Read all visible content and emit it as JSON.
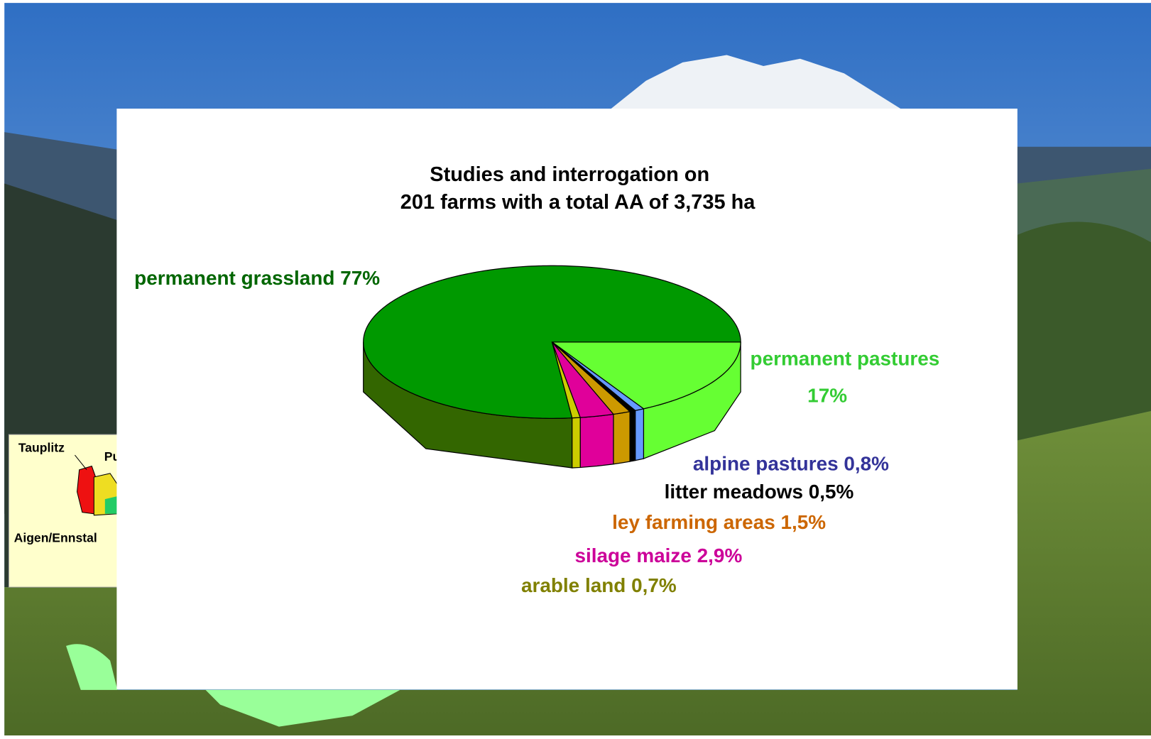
{
  "chart_data": {
    "type": "pie3d",
    "title": "Studies and interrogation on",
    "subtitle": "201 farms with a total AA of 3,735 ha",
    "categories": [
      "permanent pastures",
      "alpine pastures",
      "litter meadows",
      "ley farming areas",
      "silage maize",
      "arable land",
      "permanent grassland"
    ],
    "values": [
      17,
      0.8,
      0.5,
      1.5,
      2.9,
      0.7,
      77
    ],
    "value_labels": [
      "17%",
      "0,8%",
      "0,5%",
      "1,5%",
      "2,9%",
      "0,7%",
      "77%"
    ],
    "colors": [
      "#66ff33",
      "#6699ff",
      "#000000",
      "#cc9900",
      "#e0009a",
      "#cccc00",
      "#009900"
    ],
    "label_colors": [
      "#33cc33",
      "#333399",
      "#000000",
      "#cc6600",
      "#cc0099",
      "#808000",
      "#006600"
    ]
  },
  "map_labels": [
    "Tauplitz",
    "Pu",
    "Aigen/Ennstal"
  ]
}
